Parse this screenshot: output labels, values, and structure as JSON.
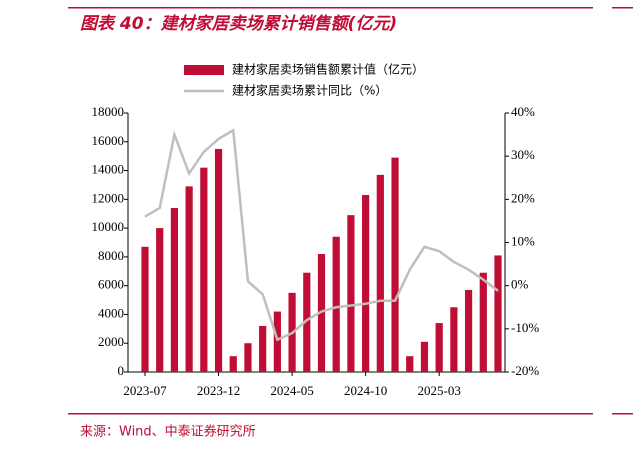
{
  "chart_data": {
    "type": "bar_line",
    "title": "图表 40：建材家居卖场累计销售额(亿元)",
    "source": "来源：Wind、中泰证券研究所",
    "categories": [
      "2023-07",
      null,
      null,
      null,
      null,
      "2023-12",
      null,
      null,
      null,
      null,
      "2024-05",
      null,
      null,
      null,
      null,
      "2024-10",
      null,
      null,
      null,
      null,
      "2025-03",
      null,
      null,
      null,
      null
    ],
    "series": [
      {
        "name": "建材家居卖场销售额累计值（亿元）",
        "type": "bar",
        "color": "#c00d35",
        "values": [
          8700,
          10000,
          11400,
          12900,
          14200,
          15500,
          1100,
          2000,
          3200,
          4200,
          5500,
          6900,
          8200,
          9400,
          10900,
          12300,
          13700,
          14900,
          1100,
          2100,
          3400,
          4500,
          5700,
          6900,
          8100
        ]
      },
      {
        "name": "建材家居卖场累计同比（%）",
        "type": "line",
        "axis": "y2",
        "color": "#bfbfbf",
        "values": [
          16,
          18,
          35,
          26,
          31,
          34,
          36,
          1,
          -2,
          -12.5,
          -11,
          -8,
          -6,
          -5,
          -4.6,
          -4.2,
          -3.5,
          -3.5,
          3.7,
          9,
          8,
          5.5,
          3.7,
          1.4,
          -1.2
        ]
      }
    ],
    "ylim": [
      0,
      18000
    ],
    "yticks": [
      0,
      2000,
      4000,
      6000,
      8000,
      10000,
      12000,
      14000,
      16000,
      18000
    ],
    "y2lim": [
      -20,
      40
    ],
    "y2ticks": [
      {
        "value": -20,
        "label": "-20%"
      },
      {
        "value": -10,
        "label": "-10%"
      },
      {
        "value": 0,
        "label": "0%"
      },
      {
        "value": 10,
        "label": "10%"
      },
      {
        "value": 20,
        "label": "20%"
      },
      {
        "value": 30,
        "label": "30%"
      },
      {
        "value": 40,
        "label": "40%"
      }
    ],
    "legend": "top"
  }
}
